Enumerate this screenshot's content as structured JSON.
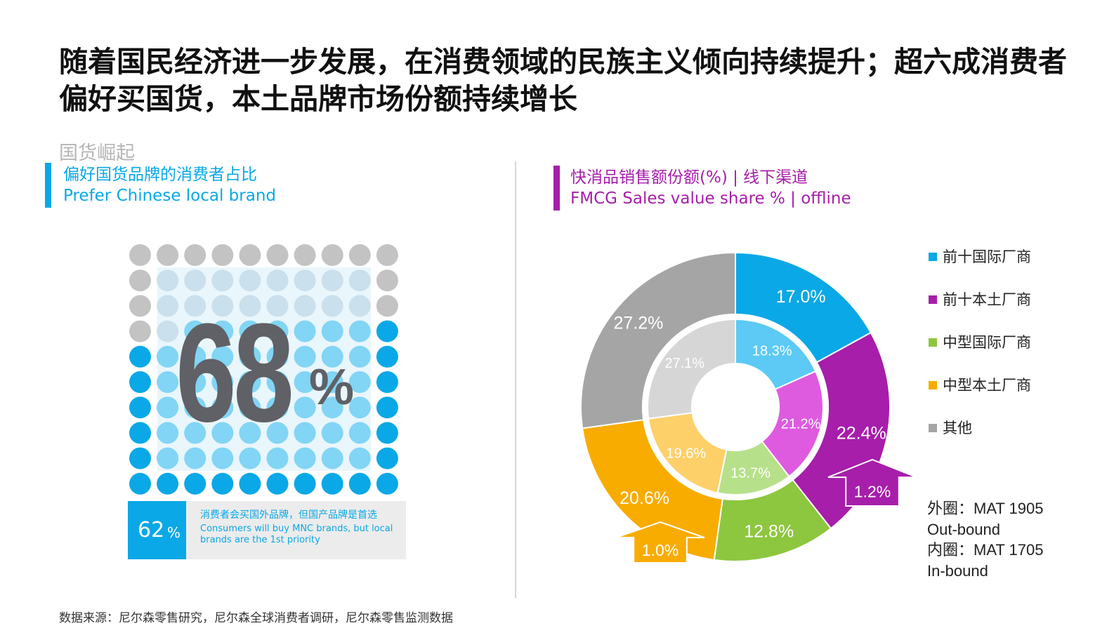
{
  "title": "随着国民经济进一步发展，在消费领域的民族主义倾向持续提升；超六成消费者偏好买国货，本土品牌市场份额持续增长",
  "section_label": "国货崛起",
  "left": {
    "subtitle_cn": "偏好国货品牌的消费者占比",
    "subtitle_en": "Prefer Chinese local brand",
    "accent": "#0aa8e6",
    "big_value": "68",
    "big_unit": "%",
    "callout_value": "62",
    "callout_unit": "%",
    "callout_cn": "消费者会买国外品牌，但国产品牌是首选",
    "callout_en": "Consumers will buy MNC brands, but local brands are the 1st priority",
    "dots_total": 100,
    "dots_blue": 68
  },
  "right": {
    "subtitle_cn": "快消品销售额份额(%) | 线下渠道",
    "subtitle_en": "FMCG Sales value share % | offline",
    "accent": "#a61eaa"
  },
  "chart_data": {
    "type": "pie",
    "title": "快消品销售额份额(%) | 线下渠道",
    "categories": [
      "前十国际厂商",
      "前十本土厂商",
      "中型国际厂商",
      "中型本土厂商",
      "其他"
    ],
    "series": [
      {
        "name": "外圈：MAT 1905",
        "values": [
          17.0,
          22.4,
          12.8,
          20.6,
          27.2
        ],
        "labels": [
          "17.0%",
          "22.4%",
          "12.8%",
          "20.6%",
          "27.2%"
        ]
      },
      {
        "name": "内圈：MAT 1705",
        "values": [
          18.3,
          21.2,
          13.7,
          19.6,
          27.1
        ],
        "labels": [
          "18.3%",
          "21.2%",
          "13.7%",
          "19.6%",
          "27.1%"
        ]
      }
    ],
    "outer_colors": [
      "#0aa8e6",
      "#a61eaa",
      "#8dc63f",
      "#f8ac00",
      "#a5a5a5"
    ],
    "inner_colors": [
      "#5ccaf5",
      "#de5bdf",
      "#b7e08a",
      "#fdd06a",
      "#d6d6d6"
    ],
    "annotations": [
      {
        "label": "1.2%",
        "direction": "up",
        "category": "前十本土厂商"
      },
      {
        "label": "1.0%",
        "direction": "up",
        "category": "中型本土厂商"
      }
    ],
    "legend_position": "right"
  },
  "notes": [
    "外圈：MAT 1905",
    "Out-bound",
    "内圈：MAT 1705",
    "In-bound"
  ],
  "source": "数据来源：尼尔森零售研究，尼尔森全球消费者调研，尼尔森零售监测数据"
}
